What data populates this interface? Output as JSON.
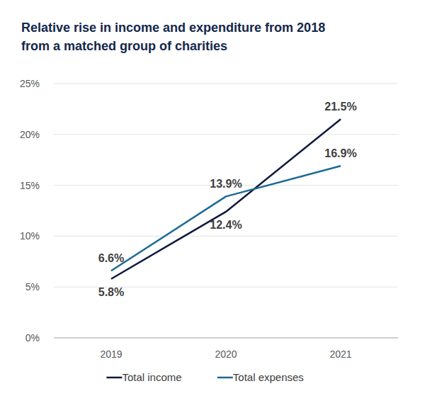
{
  "chart_data": {
    "type": "line",
    "title": "Relative rise in income and expenditure from 2018 from a matched group of charities",
    "categories": [
      "2019",
      "2020",
      "2021"
    ],
    "series": [
      {
        "name": "Total income",
        "color": "#0e1a3d",
        "values": [
          5.8,
          12.4,
          21.5
        ],
        "value_labels": [
          "5.8%",
          "12.4%",
          "21.5%"
        ]
      },
      {
        "name": "Total expenses",
        "color": "#1d6a96",
        "values": [
          6.6,
          13.9,
          16.9
        ],
        "value_labels": [
          "6.6%",
          "13.9%",
          "16.9%"
        ]
      }
    ],
    "ylim": [
      0,
      25
    ],
    "yticks": [
      {
        "value": 0,
        "label": "0%"
      },
      {
        "value": 5,
        "label": "5%"
      },
      {
        "value": 10,
        "label": "10%"
      },
      {
        "value": 15,
        "label": "15%"
      },
      {
        "value": 20,
        "label": "20%"
      },
      {
        "value": 25,
        "label": "25%"
      }
    ],
    "grid": true,
    "legend": "bottom",
    "data_labels": true
  }
}
